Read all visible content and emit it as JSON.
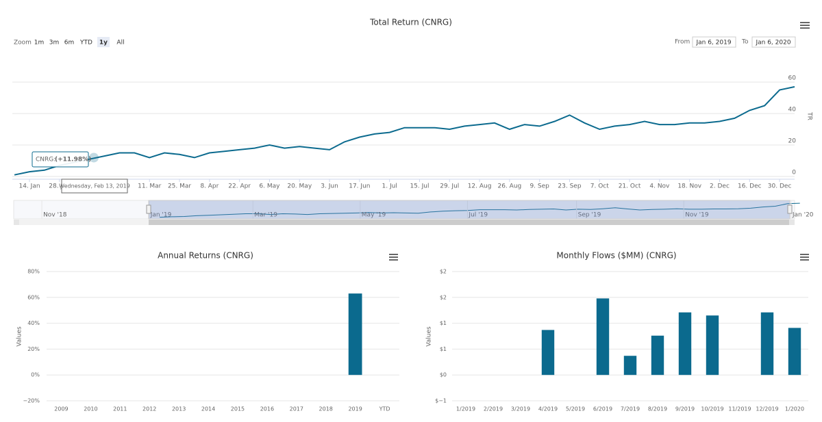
{
  "chart_data": [
    {
      "type": "line",
      "title": "Total Return (CNRG)",
      "y_axis_label": "TR",
      "range_selector": {
        "label": "Zoom",
        "buttons": [
          "1m",
          "3m",
          "6m",
          "YTD",
          "1y",
          "All"
        ],
        "selected": 4
      },
      "date_range": {
        "from_label": "From",
        "from": "Jan 6, 2019",
        "to_label": "To",
        "to": "Jan 6, 2020"
      },
      "xlim": [
        "2019-01-06",
        "2020-01-06"
      ],
      "xticks": [
        {
          "value": "2019-01-14",
          "label": "14. Jan"
        },
        {
          "value": "2019-01-28",
          "label": "28. Jan"
        },
        {
          "value": "2019-03-11",
          "label": "11. Mar"
        },
        {
          "value": "2019-03-25",
          "label": "25. Mar"
        },
        {
          "value": "2019-04-08",
          "label": "8. Apr"
        },
        {
          "value": "2019-04-22",
          "label": "22. Apr"
        },
        {
          "value": "2019-05-06",
          "label": "6. May"
        },
        {
          "value": "2019-05-20",
          "label": "20. May"
        },
        {
          "value": "2019-06-03",
          "label": "3. Jun"
        },
        {
          "value": "2019-06-17",
          "label": "17. Jun"
        },
        {
          "value": "2019-07-01",
          "label": "1. Jul"
        },
        {
          "value": "2019-07-15",
          "label": "15. Jul"
        },
        {
          "value": "2019-07-29",
          "label": "29. Jul"
        },
        {
          "value": "2019-08-12",
          "label": "12. Aug"
        },
        {
          "value": "2019-08-26",
          "label": "26. Aug"
        },
        {
          "value": "2019-09-09",
          "label": "9. Sep"
        },
        {
          "value": "2019-09-23",
          "label": "23. Sep"
        },
        {
          "value": "2019-10-07",
          "label": "7. Oct"
        },
        {
          "value": "2019-10-21",
          "label": "21. Oct"
        },
        {
          "value": "2019-11-04",
          "label": "4. Nov"
        },
        {
          "value": "2019-11-18",
          "label": "18. Nov"
        },
        {
          "value": "2019-12-02",
          "label": "2. Dec"
        },
        {
          "value": "2019-12-16",
          "label": "16. Dec"
        },
        {
          "value": "2019-12-30",
          "label": "30. Dec"
        }
      ],
      "ylim": [
        0,
        60
      ],
      "yticks": [
        0,
        20,
        40,
        60
      ],
      "grid": true,
      "series": [
        {
          "color": "#0b6a8e",
          "x": [
            "2019-01-07",
            "2019-01-14",
            "2019-01-21",
            "2019-01-28",
            "2019-02-04",
            "2019-02-11",
            "2019-02-18",
            "2019-02-25",
            "2019-03-04",
            "2019-03-11",
            "2019-03-18",
            "2019-03-25",
            "2019-04-01",
            "2019-04-08",
            "2019-04-15",
            "2019-04-22",
            "2019-04-29",
            "2019-05-06",
            "2019-05-13",
            "2019-05-20",
            "2019-05-27",
            "2019-06-03",
            "2019-06-10",
            "2019-06-17",
            "2019-06-24",
            "2019-07-01",
            "2019-07-08",
            "2019-07-15",
            "2019-07-22",
            "2019-07-29",
            "2019-08-05",
            "2019-08-12",
            "2019-08-19",
            "2019-08-26",
            "2019-09-02",
            "2019-09-09",
            "2019-09-16",
            "2019-09-23",
            "2019-09-30",
            "2019-10-07",
            "2019-10-14",
            "2019-10-21",
            "2019-10-28",
            "2019-11-04",
            "2019-11-11",
            "2019-11-18",
            "2019-11-25",
            "2019-12-02",
            "2019-12-09",
            "2019-12-16",
            "2019-12-23",
            "2019-12-30",
            "2020-01-06"
          ],
          "values": [
            1,
            3,
            4,
            7,
            9,
            11,
            13,
            15,
            15,
            12,
            15,
            14,
            12,
            15,
            16,
            17,
            18,
            20,
            18,
            19,
            18,
            17,
            22,
            25,
            27,
            28,
            31,
            31,
            31,
            30,
            32,
            33,
            34,
            30,
            33,
            32,
            35,
            39,
            34,
            30,
            32,
            33,
            35,
            33,
            33,
            34,
            34,
            35,
            37,
            42,
            45,
            55,
            57
          ]
        }
      ],
      "tooltip": {
        "x": "Wednesday, Feb 13, 2019",
        "label": "CNRG:",
        "value": 11.98,
        "value_label": "(+11.98%)"
      },
      "navigator": {
        "xlim": [
          "2018-10-16",
          "2020-01-03"
        ],
        "xticks": [
          {
            "value": "2018-11-01",
            "label": "Nov '18"
          },
          {
            "value": "2019-01-01",
            "label": "Jan '19"
          },
          {
            "value": "2019-03-01",
            "label": "Mar '19"
          },
          {
            "value": "2019-05-01",
            "label": "May '19"
          },
          {
            "value": "2019-07-01",
            "label": "Jul '19"
          },
          {
            "value": "2019-09-01",
            "label": "Sep '19"
          },
          {
            "value": "2019-11-01",
            "label": "Nov '19"
          },
          {
            "value": "2020-01-01",
            "label": "Jan '20"
          }
        ]
      }
    },
    {
      "type": "bar",
      "title": "Annual Returns (CNRG)",
      "y_axis_label": "Values",
      "categories": [
        "2009",
        "2010",
        "2011",
        "2012",
        "2013",
        "2014",
        "2015",
        "2016",
        "2017",
        "2018",
        "2019",
        "YTD"
      ],
      "values": [
        null,
        null,
        null,
        null,
        null,
        null,
        null,
        null,
        null,
        null,
        63,
        null
      ],
      "color": "#0b6a8e",
      "ylim": [
        -20,
        80
      ],
      "yticks": [
        {
          "value": -20,
          "label": "−20%"
        },
        {
          "value": 0,
          "label": "0%"
        },
        {
          "value": 20,
          "label": "20%"
        },
        {
          "value": 40,
          "label": "40%"
        },
        {
          "value": 60,
          "label": "60%"
        },
        {
          "value": 80,
          "label": "80%"
        }
      ],
      "grid": true
    },
    {
      "type": "bar",
      "title": "Monthly Flows ($MM) (CNRG)",
      "y_axis_label": "Values",
      "categories": [
        "1/2019",
        "2/2019",
        "3/2019",
        "4/2019",
        "5/2019",
        "6/2019",
        "7/2019",
        "8/2019",
        "9/2019",
        "10/2019",
        "11/2019",
        "12/2019",
        "1/2020"
      ],
      "values": [
        null,
        null,
        null,
        0.87,
        null,
        1.48,
        0.37,
        0.76,
        1.21,
        1.15,
        null,
        1.21,
        0.91
      ],
      "color": "#0b6a8e",
      "ylim": [
        -0.5,
        2
      ],
      "yticks": [
        {
          "value": -0.5,
          "label": "$−1"
        },
        {
          "value": 0,
          "label": "$0"
        },
        {
          "value": 0.5,
          "label": "$1"
        },
        {
          "value": 1,
          "label": "$1"
        },
        {
          "value": 1.5,
          "label": "$2"
        },
        {
          "value": 2,
          "label": "$2"
        }
      ],
      "grid": true
    }
  ]
}
